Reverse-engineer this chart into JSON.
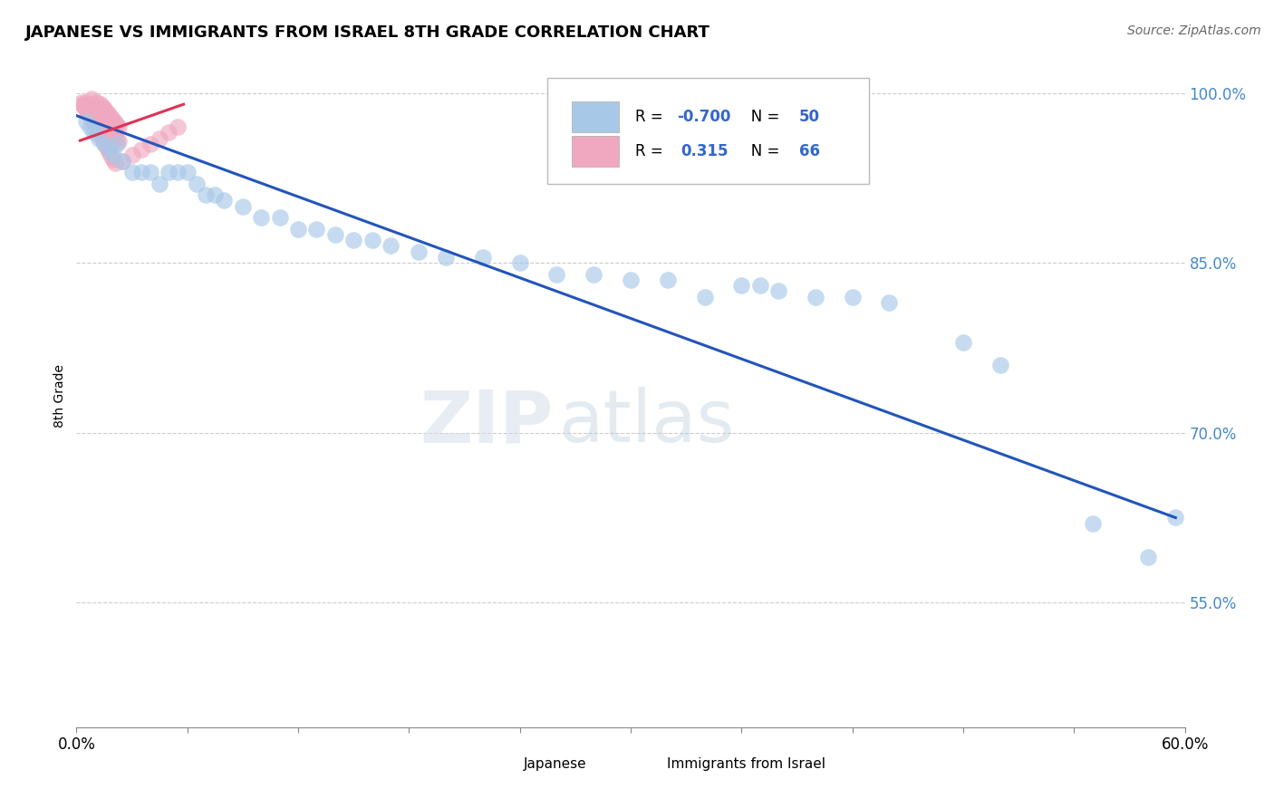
{
  "title": "JAPANESE VS IMMIGRANTS FROM ISRAEL 8TH GRADE CORRELATION CHART",
  "source": "Source: ZipAtlas.com",
  "ylabel": "8th Grade",
  "xlim": [
    0.0,
    0.6
  ],
  "ylim": [
    0.44,
    1.025
  ],
  "yticks": [
    0.55,
    0.7,
    0.85,
    1.0
  ],
  "ytick_labels": [
    "55.0%",
    "70.0%",
    "85.0%",
    "100.0%"
  ],
  "xtick_positions": [
    0.0,
    0.06,
    0.12,
    0.18,
    0.24,
    0.3,
    0.36,
    0.42,
    0.48,
    0.54,
    0.6
  ],
  "blue_R": -0.7,
  "blue_N": 50,
  "pink_R": 0.315,
  "pink_N": 66,
  "blue_color": "#a8c8e8",
  "pink_color": "#f0a8c0",
  "blue_line_color": "#2255bb",
  "pink_line_color": "#dd3355",
  "blue_label": "Japanese",
  "pink_label": "Immigrants from Israel",
  "watermark_zip": "ZIP",
  "watermark_atlas": "atlas",
  "grid_color": "#cccccc",
  "bg_color": "#ffffff",
  "blue_scatter_x": [
    0.005,
    0.007,
    0.009,
    0.01,
    0.012,
    0.015,
    0.018,
    0.02,
    0.022,
    0.025,
    0.03,
    0.035,
    0.04,
    0.045,
    0.05,
    0.055,
    0.06,
    0.065,
    0.07,
    0.075,
    0.08,
    0.09,
    0.1,
    0.11,
    0.12,
    0.13,
    0.14,
    0.15,
    0.16,
    0.17,
    0.185,
    0.2,
    0.22,
    0.24,
    0.26,
    0.28,
    0.3,
    0.32,
    0.37,
    0.38,
    0.4,
    0.42,
    0.44,
    0.34,
    0.36,
    0.48,
    0.5,
    0.55,
    0.58,
    0.595
  ],
  "blue_scatter_y": [
    0.975,
    0.97,
    0.965,
    0.968,
    0.96,
    0.955,
    0.95,
    0.945,
    0.955,
    0.94,
    0.93,
    0.93,
    0.93,
    0.92,
    0.93,
    0.93,
    0.93,
    0.92,
    0.91,
    0.91,
    0.905,
    0.9,
    0.89,
    0.89,
    0.88,
    0.88,
    0.875,
    0.87,
    0.87,
    0.865,
    0.86,
    0.855,
    0.855,
    0.85,
    0.84,
    0.84,
    0.835,
    0.835,
    0.83,
    0.825,
    0.82,
    0.82,
    0.815,
    0.82,
    0.83,
    0.78,
    0.76,
    0.62,
    0.59,
    0.625
  ],
  "pink_scatter_x": [
    0.003,
    0.004,
    0.005,
    0.005,
    0.006,
    0.006,
    0.007,
    0.007,
    0.008,
    0.008,
    0.009,
    0.009,
    0.01,
    0.01,
    0.011,
    0.011,
    0.012,
    0.012,
    0.013,
    0.013,
    0.014,
    0.014,
    0.015,
    0.015,
    0.016,
    0.016,
    0.017,
    0.017,
    0.018,
    0.018,
    0.019,
    0.019,
    0.02,
    0.02,
    0.021,
    0.021,
    0.022,
    0.022,
    0.023,
    0.023,
    0.003,
    0.004,
    0.005,
    0.006,
    0.007,
    0.008,
    0.009,
    0.01,
    0.011,
    0.012,
    0.013,
    0.014,
    0.015,
    0.016,
    0.017,
    0.018,
    0.019,
    0.02,
    0.021,
    0.025,
    0.03,
    0.035,
    0.04,
    0.045,
    0.05,
    0.055
  ],
  "pink_scatter_y": [
    0.99,
    0.988,
    0.985,
    0.992,
    0.987,
    0.983,
    0.99,
    0.986,
    0.982,
    0.995,
    0.984,
    0.991,
    0.98,
    0.988,
    0.983,
    0.992,
    0.979,
    0.986,
    0.977,
    0.99,
    0.975,
    0.988,
    0.973,
    0.986,
    0.971,
    0.984,
    0.969,
    0.982,
    0.967,
    0.98,
    0.965,
    0.978,
    0.963,
    0.976,
    0.961,
    0.974,
    0.959,
    0.972,
    0.957,
    0.97,
    0.992,
    0.989,
    0.986,
    0.983,
    0.98,
    0.977,
    0.974,
    0.971,
    0.968,
    0.965,
    0.962,
    0.959,
    0.956,
    0.953,
    0.95,
    0.947,
    0.944,
    0.941,
    0.938,
    0.94,
    0.945,
    0.95,
    0.955,
    0.96,
    0.965,
    0.97
  ],
  "blue_line_x": [
    0.0,
    0.595
  ],
  "blue_line_y": [
    0.98,
    0.625
  ],
  "pink_line_x": [
    0.002,
    0.058
  ],
  "pink_line_y": [
    0.958,
    0.99
  ]
}
